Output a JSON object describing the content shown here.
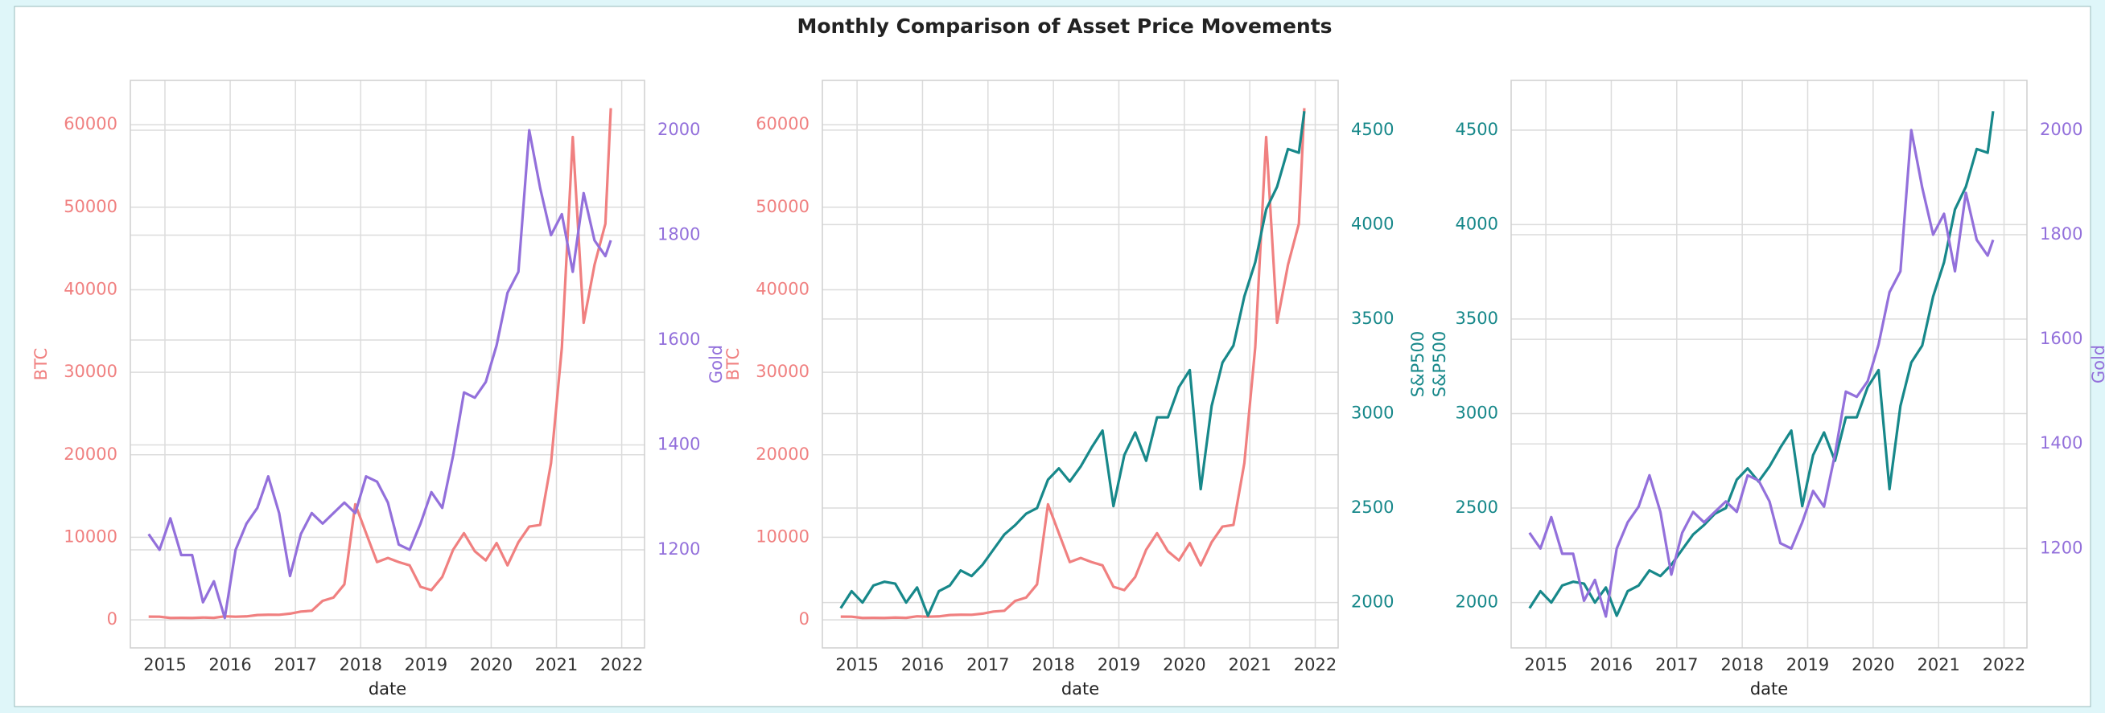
{
  "title": "Monthly Comparison of Asset Price Movements",
  "chart_data": [
    {
      "type": "line",
      "xlabel": "date",
      "x": [
        2014.75,
        2014.917,
        2015.083,
        2015.25,
        2015.417,
        2015.583,
        2015.75,
        2015.917,
        2016.083,
        2016.25,
        2016.417,
        2016.583,
        2016.75,
        2016.917,
        2017.083,
        2017.25,
        2017.417,
        2017.583,
        2017.75,
        2017.917,
        2018.083,
        2018.25,
        2018.417,
        2018.583,
        2018.75,
        2018.917,
        2019.083,
        2019.25,
        2019.417,
        2019.583,
        2019.75,
        2019.917,
        2020.083,
        2020.25,
        2020.417,
        2020.583,
        2020.75,
        2020.917,
        2021.083,
        2021.25,
        2021.417,
        2021.583,
        2021.75,
        2021.833
      ],
      "xlim": [
        2014.47,
        2022.35
      ],
      "xticks": [
        2015,
        2016,
        2017,
        2018,
        2019,
        2020,
        2021,
        2022
      ],
      "ylim": [
        -3400,
        65370
      ],
      "yticks": [
        0,
        10000,
        20000,
        30000,
        40000,
        50000,
        60000
      ],
      "y2lim": [
        1013,
        2095
      ],
      "y2ticks": [
        1200,
        1400,
        1600,
        1800,
        2000
      ],
      "series": [
        {
          "name": "BTC",
          "color": "#f08080",
          "values": [
            390,
            380,
            230,
            240,
            230,
            280,
            240,
            430,
            380,
            420,
            580,
            620,
            610,
            750,
            1000,
            1100,
            2300,
            2700,
            4300,
            14000,
            10500,
            7000,
            7500,
            7000,
            6600,
            4000,
            3600,
            5200,
            8500,
            10500,
            8300,
            7200,
            9300,
            6600,
            9400,
            11300,
            11500,
            19000,
            33000,
            58500,
            36000,
            43000,
            48000,
            62000
          ]
        },
        {
          "name": "Gold",
          "color": "#9370db",
          "axis": "y2",
          "values": [
            1230,
            1200,
            1260,
            1190,
            1190,
            1100,
            1140,
            1070,
            1200,
            1250,
            1280,
            1340,
            1270,
            1150,
            1230,
            1270,
            1250,
            1270,
            1290,
            1270,
            1340,
            1330,
            1290,
            1210,
            1200,
            1250,
            1310,
            1280,
            1380,
            1500,
            1490,
            1520,
            1590,
            1690,
            1730,
            2000,
            1890,
            1800,
            1840,
            1730,
            1880,
            1790,
            1760,
            1790
          ]
        }
      ]
    },
    {
      "type": "line",
      "xlabel": "date",
      "x": [
        2014.75,
        2014.917,
        2015.083,
        2015.25,
        2015.417,
        2015.583,
        2015.75,
        2015.917,
        2016.083,
        2016.25,
        2016.417,
        2016.583,
        2016.75,
        2016.917,
        2017.083,
        2017.25,
        2017.417,
        2017.583,
        2017.75,
        2017.917,
        2018.083,
        2018.25,
        2018.417,
        2018.583,
        2018.75,
        2018.917,
        2019.083,
        2019.25,
        2019.417,
        2019.583,
        2019.75,
        2019.917,
        2020.083,
        2020.25,
        2020.417,
        2020.583,
        2020.75,
        2020.917,
        2021.083,
        2021.25,
        2021.417,
        2021.583,
        2021.75,
        2021.833
      ],
      "xlim": [
        2014.47,
        2022.35
      ],
      "xticks": [
        2015,
        2016,
        2017,
        2018,
        2019,
        2020,
        2021,
        2022
      ],
      "ylim": [
        -3400,
        65370
      ],
      "yticks": [
        0,
        10000,
        20000,
        30000,
        40000,
        50000,
        60000
      ],
      "y2lim": [
        1760,
        4763
      ],
      "y2ticks": [
        2000,
        2500,
        3000,
        3500,
        4000,
        4500
      ],
      "series": [
        {
          "name": "BTC",
          "color": "#f08080",
          "values": [
            390,
            380,
            230,
            240,
            230,
            280,
            240,
            430,
            380,
            420,
            580,
            620,
            610,
            750,
            1000,
            1100,
            2300,
            2700,
            4300,
            14000,
            10500,
            7000,
            7500,
            7000,
            6600,
            4000,
            3600,
            5200,
            8500,
            10500,
            8300,
            7200,
            9300,
            6600,
            9400,
            11300,
            11500,
            19000,
            33000,
            58500,
            36000,
            43000,
            48000,
            62000
          ]
        },
        {
          "name": "S&P500",
          "color": "#17888a",
          "axis": "y2",
          "values": [
            1970,
            2060,
            2000,
            2090,
            2110,
            2100,
            2000,
            2080,
            1930,
            2060,
            2090,
            2170,
            2140,
            2200,
            2280,
            2360,
            2410,
            2470,
            2500,
            2650,
            2710,
            2640,
            2720,
            2820,
            2910,
            2510,
            2780,
            2900,
            2750,
            2980,
            2980,
            3140,
            3230,
            2600,
            3040,
            3270,
            3360,
            3620,
            3800,
            4080,
            4200,
            4400,
            4380,
            4600
          ]
        }
      ]
    },
    {
      "type": "line",
      "xlabel": "date",
      "x": [
        2014.75,
        2014.917,
        2015.083,
        2015.25,
        2015.417,
        2015.583,
        2015.75,
        2015.917,
        2016.083,
        2016.25,
        2016.417,
        2016.583,
        2016.75,
        2016.917,
        2017.083,
        2017.25,
        2017.417,
        2017.583,
        2017.75,
        2017.917,
        2018.083,
        2018.25,
        2018.417,
        2018.583,
        2018.75,
        2018.917,
        2019.083,
        2019.25,
        2019.417,
        2019.583,
        2019.75,
        2019.917,
        2020.083,
        2020.25,
        2020.417,
        2020.583,
        2020.75,
        2020.917,
        2021.083,
        2021.25,
        2021.417,
        2021.583,
        2021.75,
        2021.833
      ],
      "xlim": [
        2014.47,
        2022.35
      ],
      "xticks": [
        2015,
        2016,
        2017,
        2018,
        2019,
        2020,
        2021,
        2022
      ],
      "ylim": [
        1760,
        4763
      ],
      "yticks": [
        2000,
        2500,
        3000,
        3500,
        4000,
        4500
      ],
      "y2lim": [
        1010,
        2095
      ],
      "y2ticks": [
        1200,
        1400,
        1600,
        1800,
        2000
      ],
      "series": [
        {
          "name": "S&P500",
          "color": "#17888a",
          "values": [
            1970,
            2060,
            2000,
            2090,
            2110,
            2100,
            2000,
            2080,
            1930,
            2060,
            2090,
            2170,
            2140,
            2200,
            2280,
            2360,
            2410,
            2470,
            2500,
            2650,
            2710,
            2640,
            2720,
            2820,
            2910,
            2510,
            2780,
            2900,
            2750,
            2980,
            2980,
            3140,
            3230,
            2600,
            3040,
            3270,
            3360,
            3620,
            3800,
            4080,
            4200,
            4400,
            4380,
            4600
          ]
        },
        {
          "name": "Gold",
          "color": "#9370db",
          "axis": "y2",
          "values": [
            1230,
            1200,
            1260,
            1190,
            1190,
            1100,
            1140,
            1070,
            1200,
            1250,
            1280,
            1340,
            1270,
            1150,
            1230,
            1270,
            1250,
            1270,
            1290,
            1270,
            1340,
            1330,
            1290,
            1210,
            1200,
            1250,
            1310,
            1280,
            1380,
            1500,
            1490,
            1520,
            1590,
            1690,
            1730,
            2000,
            1890,
            1800,
            1840,
            1730,
            1880,
            1790,
            1760,
            1790
          ]
        }
      ]
    }
  ]
}
